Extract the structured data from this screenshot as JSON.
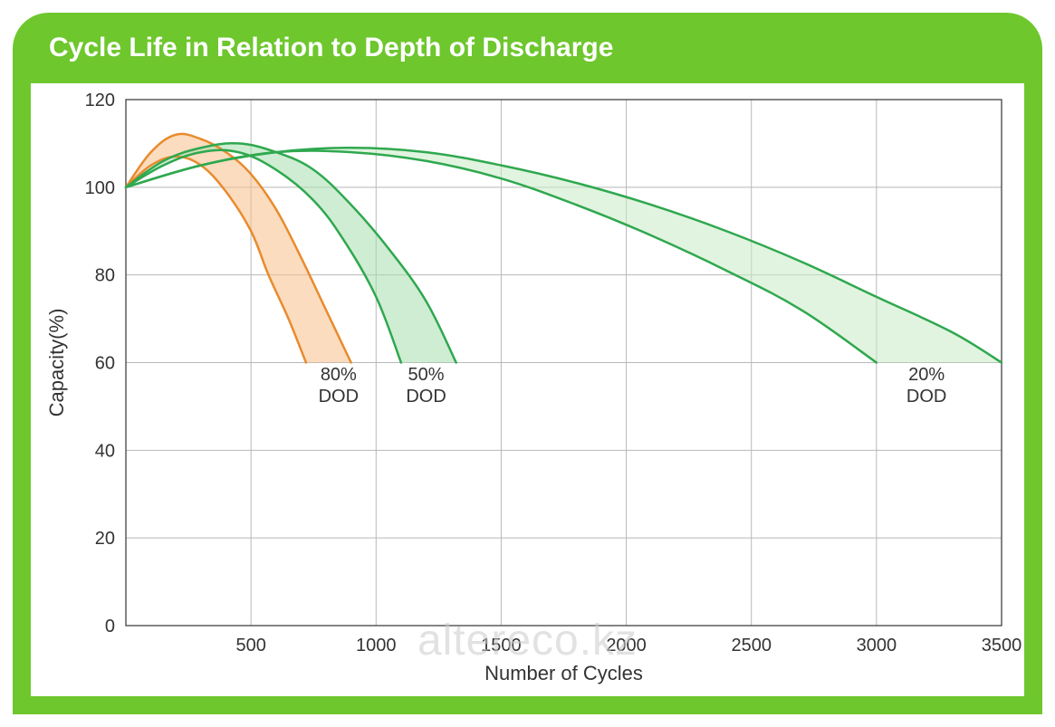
{
  "frame": {
    "outer_width": 1165,
    "outer_height": 803,
    "border_color": "#6ec72d",
    "corner_radius": 40,
    "inner_bg": "#ffffff"
  },
  "title": {
    "text": "Cycle Life in Relation to Depth of Discharge",
    "font_size": 30,
    "font_weight": "bold",
    "color": "#ffffff",
    "bg": "#6ec72d"
  },
  "chart": {
    "type": "line-band",
    "xlabel": "Number of Cycles",
    "ylabel": "Capacity(%)",
    "label_fontsize": 22,
    "tick_fontsize": 20,
    "axis_color": "#333333",
    "grid_color": "#b8b8b8",
    "grid_width": 1,
    "background": "#ffffff",
    "xlim": [
      0,
      3500
    ],
    "ylim": [
      0,
      120
    ],
    "xticks": [
      0,
      500,
      1000,
      1500,
      2000,
      2500,
      3000,
      3500
    ],
    "yticks": [
      0,
      20,
      40,
      60,
      80,
      100,
      120
    ],
    "line_width": 2.5
  },
  "series": [
    {
      "name": "80% DOD",
      "label_line1": "80%",
      "label_line2": "DOD",
      "label_x": 850,
      "label_y": 56,
      "stroke": "#e88b2d",
      "fill": "#f7c08a",
      "fill_opacity": 0.55,
      "upper": [
        {
          "x": 0,
          "y": 100
        },
        {
          "x": 100,
          "y": 108
        },
        {
          "x": 200,
          "y": 112
        },
        {
          "x": 300,
          "y": 111
        },
        {
          "x": 400,
          "y": 108
        },
        {
          "x": 500,
          "y": 103
        },
        {
          "x": 600,
          "y": 95
        },
        {
          "x": 700,
          "y": 84
        },
        {
          "x": 800,
          "y": 72
        },
        {
          "x": 900,
          "y": 60
        }
      ],
      "lower": [
        {
          "x": 0,
          "y": 100
        },
        {
          "x": 100,
          "y": 105
        },
        {
          "x": 200,
          "y": 107
        },
        {
          "x": 300,
          "y": 105
        },
        {
          "x": 400,
          "y": 99
        },
        {
          "x": 500,
          "y": 90
        },
        {
          "x": 570,
          "y": 80
        },
        {
          "x": 650,
          "y": 70
        },
        {
          "x": 720,
          "y": 60
        }
      ]
    },
    {
      "name": "50% DOD",
      "label_line1": "50%",
      "label_line2": "DOD",
      "label_x": 1200,
      "label_y": 56,
      "stroke": "#2fa84f",
      "fill": "#a8dfae",
      "fill_opacity": 0.55,
      "upper": [
        {
          "x": 0,
          "y": 100
        },
        {
          "x": 150,
          "y": 106
        },
        {
          "x": 300,
          "y": 109
        },
        {
          "x": 450,
          "y": 110
        },
        {
          "x": 600,
          "y": 108
        },
        {
          "x": 750,
          "y": 104
        },
        {
          "x": 900,
          "y": 96
        },
        {
          "x": 1050,
          "y": 86
        },
        {
          "x": 1200,
          "y": 74
        },
        {
          "x": 1320,
          "y": 60
        }
      ],
      "lower": [
        {
          "x": 0,
          "y": 100
        },
        {
          "x": 150,
          "y": 105
        },
        {
          "x": 300,
          "y": 108
        },
        {
          "x": 450,
          "y": 108
        },
        {
          "x": 600,
          "y": 104
        },
        {
          "x": 750,
          "y": 97
        },
        {
          "x": 870,
          "y": 88
        },
        {
          "x": 1000,
          "y": 75
        },
        {
          "x": 1100,
          "y": 60
        }
      ]
    },
    {
      "name": "20% DOD",
      "label_line1": "20%",
      "label_line2": "DOD",
      "label_x": 3200,
      "label_y": 56,
      "stroke": "#2fa84f",
      "fill": "#c8ebc4",
      "fill_opacity": 0.55,
      "upper": [
        {
          "x": 0,
          "y": 100
        },
        {
          "x": 300,
          "y": 105
        },
        {
          "x": 600,
          "y": 108
        },
        {
          "x": 900,
          "y": 109
        },
        {
          "x": 1200,
          "y": 108
        },
        {
          "x": 1500,
          "y": 105
        },
        {
          "x": 1800,
          "y": 101
        },
        {
          "x": 2100,
          "y": 96
        },
        {
          "x": 2400,
          "y": 90
        },
        {
          "x": 2700,
          "y": 83
        },
        {
          "x": 3000,
          "y": 75
        },
        {
          "x": 3300,
          "y": 67
        },
        {
          "x": 3500,
          "y": 60
        }
      ],
      "lower": [
        {
          "x": 0,
          "y": 100
        },
        {
          "x": 300,
          "y": 105
        },
        {
          "x": 600,
          "y": 108
        },
        {
          "x": 900,
          "y": 108
        },
        {
          "x": 1200,
          "y": 106
        },
        {
          "x": 1500,
          "y": 102
        },
        {
          "x": 1800,
          "y": 96
        },
        {
          "x": 2100,
          "y": 89
        },
        {
          "x": 2400,
          "y": 81
        },
        {
          "x": 2700,
          "y": 72
        },
        {
          "x": 3000,
          "y": 60
        }
      ]
    }
  ],
  "watermark": {
    "text": "altereco.kz",
    "color": "#cccccc",
    "opacity": 0.55,
    "font_size": 48
  }
}
